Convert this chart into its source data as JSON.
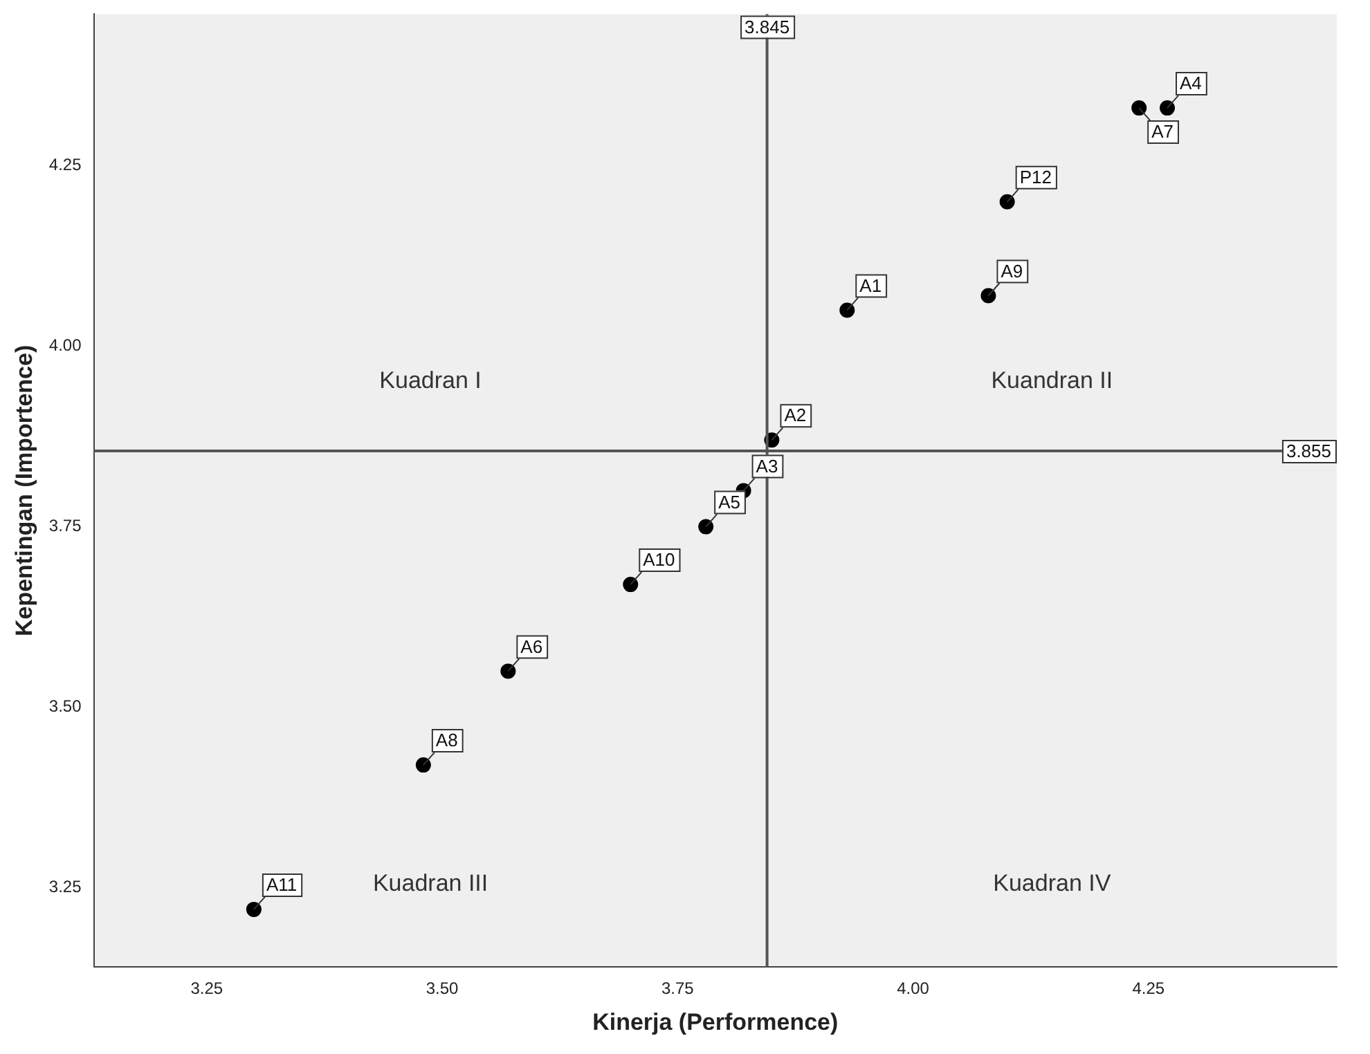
{
  "chart_data": {
    "type": "scatter",
    "xlabel": "Kinerja (Performence)",
    "ylabel": "Kepentingan (Importence)",
    "x": [
      3.93,
      3.85,
      3.82,
      4.27,
      3.78,
      3.57,
      4.24,
      3.48,
      4.08,
      3.7,
      3.3,
      4.1
    ],
    "values": [
      4.05,
      3.87,
      3.8,
      4.33,
      3.75,
      3.55,
      4.33,
      3.42,
      4.07,
      3.67,
      3.22,
      4.2
    ],
    "color": "#000000",
    "marker": "circle",
    "grid": false,
    "legend": false,
    "xlim": [
      3.13,
      4.45
    ],
    "ylim": [
      3.14,
      4.46
    ],
    "xticks": [
      3.25,
      {
        "value": 3.5,
        "label": "3.50"
      },
      3.75,
      {
        "value": 4,
        "label": "4.00"
      },
      4.25
    ],
    "yticks": [
      3.25,
      {
        "value": 3.5,
        "label": "3.50"
      },
      3.75,
      {
        "value": 4,
        "label": "4.00"
      },
      4.25
    ],
    "ref_lines": [
      {
        "axis": "x",
        "value": 3.845,
        "label": "3.845",
        "color": "#555555"
      },
      {
        "axis": "y",
        "value": 3.855,
        "label": "3.855",
        "color": "#555555"
      }
    ],
    "annotations": [
      {
        "text": "A1",
        "x": 3.93,
        "y": 4.05
      },
      {
        "text": "A2",
        "x": 3.85,
        "y": 3.87
      },
      {
        "text": "A3",
        "x": 3.82,
        "y": 3.8
      },
      {
        "text": "A4",
        "x": 4.27,
        "y": 4.33
      },
      {
        "text": "A5",
        "x": 3.78,
        "y": 3.75
      },
      {
        "text": "A6",
        "x": 3.57,
        "y": 3.55
      },
      {
        "text": "A7",
        "x": 4.24,
        "y": 4.33
      },
      {
        "text": "A8",
        "x": 3.48,
        "y": 3.42
      },
      {
        "text": "A9",
        "x": 4.08,
        "y": 4.07
      },
      {
        "text": "A10",
        "x": 3.7,
        "y": 3.67
      },
      {
        "text": "A11",
        "x": 3.3,
        "y": 3.22
      },
      {
        "text": "P12",
        "x": 4.1,
        "y": 4.2
      },
      "Kuadran I",
      "Kuandran II",
      "Kuadran III",
      "Kuadran IV"
    ]
  }
}
